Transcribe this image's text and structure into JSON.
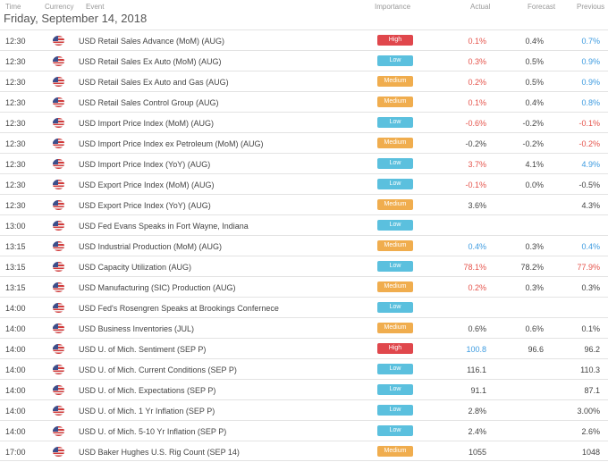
{
  "columns": {
    "time": "Time",
    "currency": "Currency",
    "event": "Event",
    "importance": "Importance",
    "actual": "Actual",
    "forecast": "Forecast",
    "previous": "Previous"
  },
  "date": "Friday, September 14, 2018",
  "colors": {
    "high": "#e0474c",
    "low": "#5bc0de",
    "medium": "#f0ad4e",
    "red_value": "#e5534b",
    "blue_value": "#3d9be0"
  },
  "rows": [
    {
      "time": "12:30",
      "event": "USD Retail Sales Advance (MoM) (AUG)",
      "importance": "High",
      "actual": "0.1%",
      "actual_color": "red",
      "forecast": "0.4%",
      "previous": "0.7%",
      "previous_color": "blue"
    },
    {
      "time": "12:30",
      "event": "USD Retail Sales Ex Auto (MoM) (AUG)",
      "importance": "Low",
      "actual": "0.3%",
      "actual_color": "red",
      "forecast": "0.5%",
      "previous": "0.9%",
      "previous_color": "blue"
    },
    {
      "time": "12:30",
      "event": "USD Retail Sales Ex Auto and Gas (AUG)",
      "importance": "Medium",
      "actual": "0.2%",
      "actual_color": "red",
      "forecast": "0.5%",
      "previous": "0.9%",
      "previous_color": "blue"
    },
    {
      "time": "12:30",
      "event": "USD Retail Sales Control Group (AUG)",
      "importance": "Medium",
      "actual": "0.1%",
      "actual_color": "red",
      "forecast": "0.4%",
      "previous": "0.8%",
      "previous_color": "blue"
    },
    {
      "time": "12:30",
      "event": "USD Import Price Index (MoM) (AUG)",
      "importance": "Low",
      "actual": "-0.6%",
      "actual_color": "red",
      "forecast": "-0.2%",
      "previous": "-0.1%",
      "previous_color": "red"
    },
    {
      "time": "12:30",
      "event": "USD Import Price Index ex Petroleum (MoM) (AUG)",
      "importance": "Medium",
      "actual": "-0.2%",
      "actual_color": "dark",
      "forecast": "-0.2%",
      "previous": "-0.2%",
      "previous_color": "red"
    },
    {
      "time": "12:30",
      "event": "USD Import Price Index (YoY) (AUG)",
      "importance": "Low",
      "actual": "3.7%",
      "actual_color": "red",
      "forecast": "4.1%",
      "previous": "4.9%",
      "previous_color": "blue"
    },
    {
      "time": "12:30",
      "event": "USD Export Price Index (MoM) (AUG)",
      "importance": "Low",
      "actual": "-0.1%",
      "actual_color": "red",
      "forecast": "0.0%",
      "previous": "-0.5%",
      "previous_color": "dark"
    },
    {
      "time": "12:30",
      "event": "USD Export Price Index (YoY) (AUG)",
      "importance": "Medium",
      "actual": "3.6%",
      "actual_color": "dark",
      "forecast": "",
      "previous": "4.3%",
      "previous_color": "dark"
    },
    {
      "time": "13:00",
      "event": "USD Fed Evans Speaks in Fort Wayne, Indiana",
      "importance": "Low",
      "actual": "",
      "actual_color": "dark",
      "forecast": "",
      "previous": "",
      "previous_color": "dark"
    },
    {
      "time": "13:15",
      "event": "USD Industrial Production (MoM) (AUG)",
      "importance": "Medium",
      "actual": "0.4%",
      "actual_color": "blue",
      "forecast": "0.3%",
      "previous": "0.4%",
      "previous_color": "blue"
    },
    {
      "time": "13:15",
      "event": "USD Capacity Utilization (AUG)",
      "importance": "Low",
      "actual": "78.1%",
      "actual_color": "red",
      "forecast": "78.2%",
      "previous": "77.9%",
      "previous_color": "red"
    },
    {
      "time": "13:15",
      "event": "USD Manufacturing (SIC) Production (AUG)",
      "importance": "Medium",
      "actual": "0.2%",
      "actual_color": "red",
      "forecast": "0.3%",
      "previous": "0.3%",
      "previous_color": "dark"
    },
    {
      "time": "14:00",
      "event": "USD Fed's Rosengren Speaks at Brookings Confernece",
      "importance": "Low",
      "actual": "",
      "actual_color": "dark",
      "forecast": "",
      "previous": "",
      "previous_color": "dark"
    },
    {
      "time": "14:00",
      "event": "USD Business Inventories (JUL)",
      "importance": "Medium",
      "actual": "0.6%",
      "actual_color": "dark",
      "forecast": "0.6%",
      "previous": "0.1%",
      "previous_color": "dark"
    },
    {
      "time": "14:00",
      "event": "USD U. of Mich. Sentiment (SEP P)",
      "importance": "High",
      "actual": "100.8",
      "actual_color": "blue",
      "forecast": "96.6",
      "previous": "96.2",
      "previous_color": "dark"
    },
    {
      "time": "14:00",
      "event": "USD U. of Mich. Current Conditions (SEP P)",
      "importance": "Low",
      "actual": "116.1",
      "actual_color": "dark",
      "forecast": "",
      "previous": "110.3",
      "previous_color": "dark"
    },
    {
      "time": "14:00",
      "event": "USD U. of Mich. Expectations (SEP P)",
      "importance": "Low",
      "actual": "91.1",
      "actual_color": "dark",
      "forecast": "",
      "previous": "87.1",
      "previous_color": "dark"
    },
    {
      "time": "14:00",
      "event": "USD U. of Mich. 1 Yr Inflation (SEP P)",
      "importance": "Low",
      "actual": "2.8%",
      "actual_color": "dark",
      "forecast": "",
      "previous": "3.00%",
      "previous_color": "dark"
    },
    {
      "time": "14:00",
      "event": "USD U. of Mich. 5-10 Yr Inflation (SEP P)",
      "importance": "Low",
      "actual": "2.4%",
      "actual_color": "dark",
      "forecast": "",
      "previous": "2.6%",
      "previous_color": "dark"
    },
    {
      "time": "17:00",
      "event": "USD Baker Hughes U.S. Rig Count (SEP 14)",
      "importance": "Medium",
      "actual": "1055",
      "actual_color": "dark",
      "forecast": "",
      "previous": "1048",
      "previous_color": "dark"
    }
  ]
}
